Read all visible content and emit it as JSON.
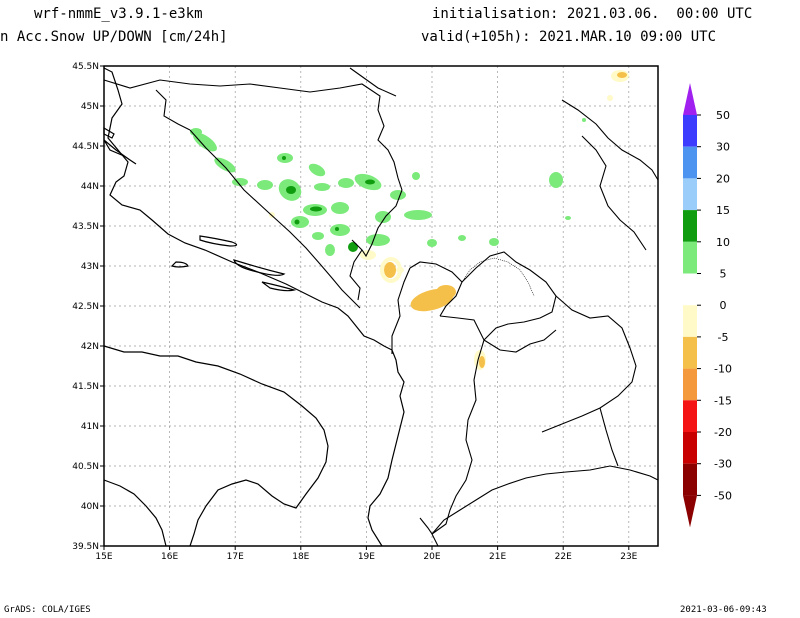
{
  "header": {
    "model": "wrf-nmmE_v3.9.1-e3km",
    "field": "n Acc.Snow UP/DOWN [cm/24h]",
    "init": "initialisation: 2021.03.06.  00:00 UTC",
    "valid": "valid(+105h): 2021.MAR.10 09:00 UTC"
  },
  "footer": {
    "credit": "GrADS: COLA/IGES",
    "timestamp": "2021-03-06-09:43"
  },
  "axes": {
    "lat_ticks": [
      "45.5N",
      "45N",
      "44.5N",
      "44N",
      "43.5N",
      "43N",
      "42.5N",
      "42N",
      "41.5N",
      "41N",
      "40.5N",
      "40N",
      "39.5N"
    ],
    "lon_ticks": [
      "15E",
      "16E",
      "17E",
      "18E",
      "19E",
      "20E",
      "21E",
      "22E",
      "23E"
    ]
  },
  "colorbar": {
    "labels": [
      "50",
      "30",
      "20",
      "15",
      "10",
      "5",
      "0",
      "-5",
      "-10",
      "-15",
      "-20",
      "-30",
      "-50"
    ],
    "colors": [
      "#a020f0",
      "#3c3cff",
      "#4d94f0",
      "#9bcdfa",
      "#0f9d0f",
      "#7bea7b",
      "#ffffff",
      "#fffac8",
      "#f5c04a",
      "#f59a3c",
      "#f51414",
      "#c80000",
      "#8b0000"
    ],
    "top_arrow_color": "#a020f0",
    "bottom_arrow_color": "#8b0000"
  }
}
